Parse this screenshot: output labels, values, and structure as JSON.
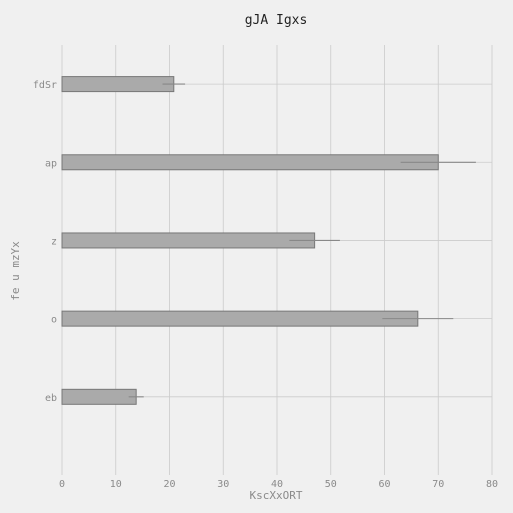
{
  "chart_data": {
    "type": "bar",
    "orientation": "horizontal",
    "title": "gJA Igxs",
    "xlabel": "KscXxORT",
    "ylabel": "fe u mzYx",
    "categories": [
      "fdSr",
      "ap",
      "z",
      "o",
      "eb"
    ],
    "values": [
      20.8,
      70.0,
      47.0,
      66.2,
      13.8
    ],
    "errors": [
      2.1,
      7.0,
      4.7,
      6.6,
      1.4
    ],
    "xlim": [
      0,
      80
    ],
    "xticks": [
      0,
      10,
      20,
      30,
      40,
      50,
      60,
      70,
      80
    ],
    "grid": true,
    "colors": {
      "bar_fill": "#aaaaaa",
      "bar_edge": "#777777",
      "background": "#f0f0f0",
      "grid": "#cbcbcb"
    }
  }
}
